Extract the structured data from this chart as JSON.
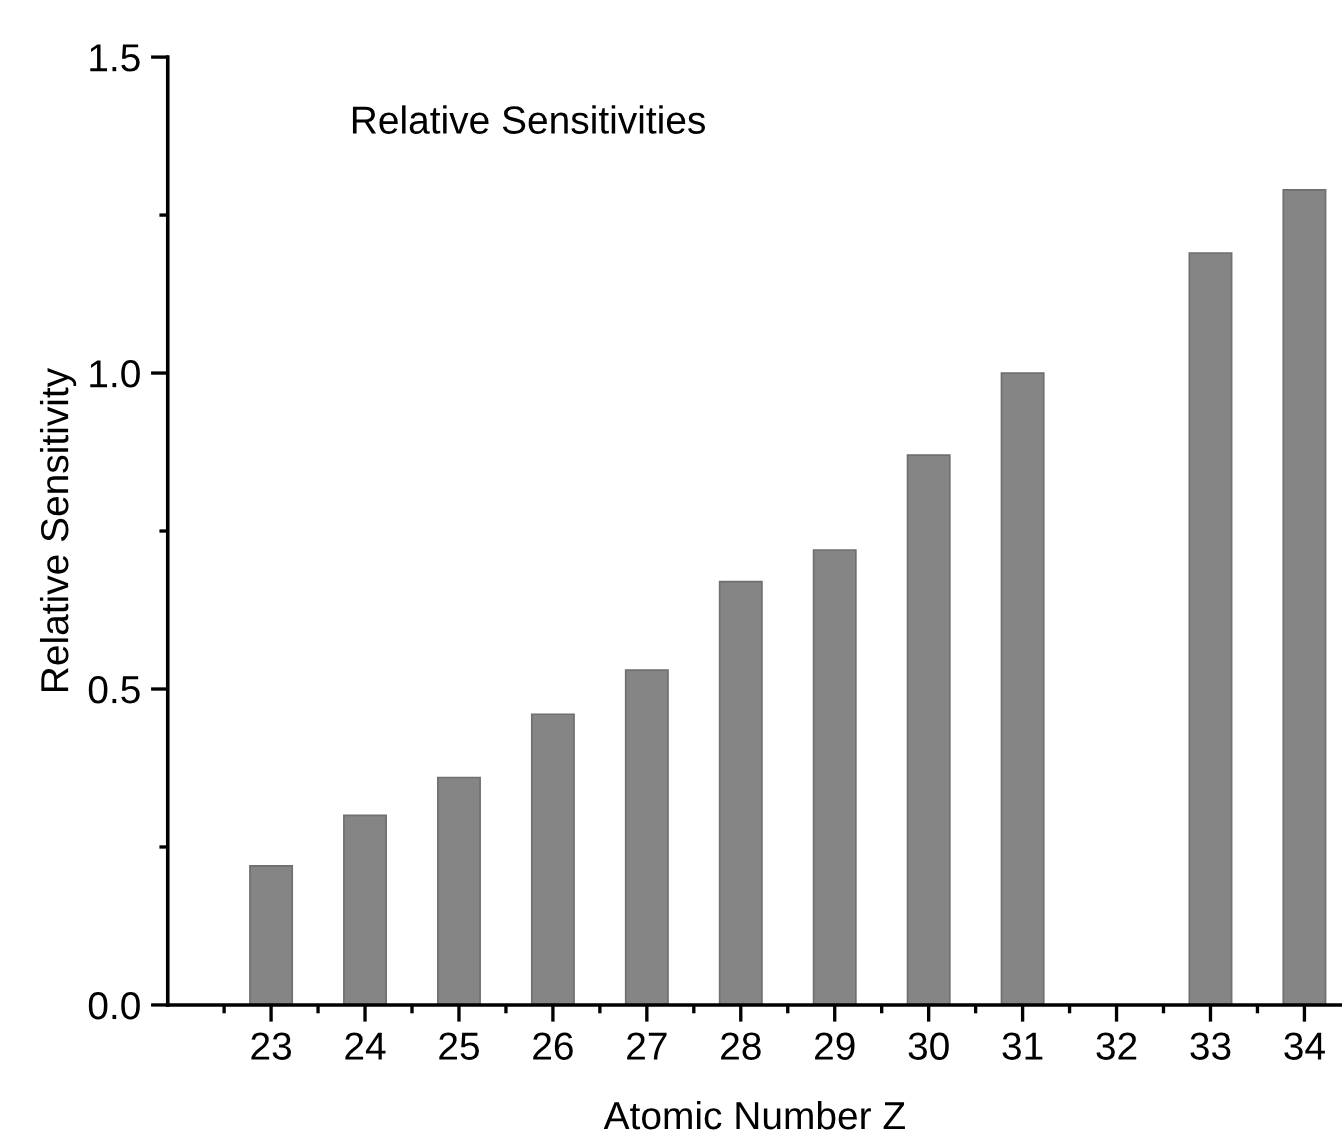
{
  "chart_data": {
    "type": "bar",
    "title": "Relative Sensitivities",
    "xlabel": "Atomic Number Z",
    "ylabel": "Relative Sensitivity",
    "categories": [
      "23",
      "24",
      "25",
      "26",
      "27",
      "28",
      "29",
      "30",
      "31",
      "32",
      "33",
      "34"
    ],
    "values": [
      0.22,
      0.3,
      0.36,
      0.46,
      0.53,
      0.67,
      0.72,
      0.87,
      1.0,
      null,
      1.19,
      1.29
    ],
    "color": "#858585",
    "ylim": [
      0,
      1.5
    ],
    "yticks": [
      {
        "value": 0,
        "label": "0.0"
      },
      0.5,
      {
        "value": 1,
        "label": "1.0"
      },
      1.5
    ],
    "grid": false,
    "legend": false
  }
}
